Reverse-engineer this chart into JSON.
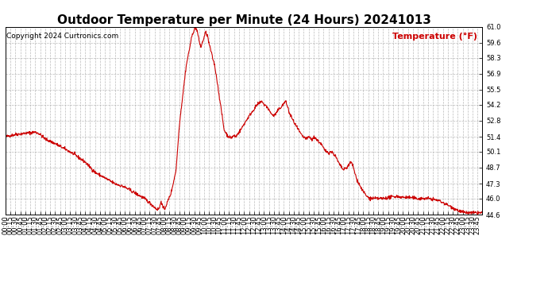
{
  "title": "Outdoor Temperature per Minute (24 Hours) 20241013",
  "copyright_text": "Copyright 2024 Curtronics.com",
  "legend_label": "Temperature (°F)",
  "line_color": "#cc0000",
  "legend_color": "#cc0000",
  "copyright_color": "#000000",
  "background_color": "#ffffff",
  "grid_color": "#aaaaaa",
  "ylim": [
    44.6,
    61.0
  ],
  "yticks": [
    44.6,
    46.0,
    47.3,
    48.7,
    50.1,
    51.4,
    52.8,
    54.2,
    55.5,
    56.9,
    58.3,
    59.6,
    61.0
  ],
  "xtick_interval_minutes": 15,
  "total_minutes": 1440,
  "title_fontsize": 11,
  "axis_fontsize": 6,
  "legend_fontsize": 8,
  "copyright_fontsize": 6.5,
  "line_width": 0.8
}
